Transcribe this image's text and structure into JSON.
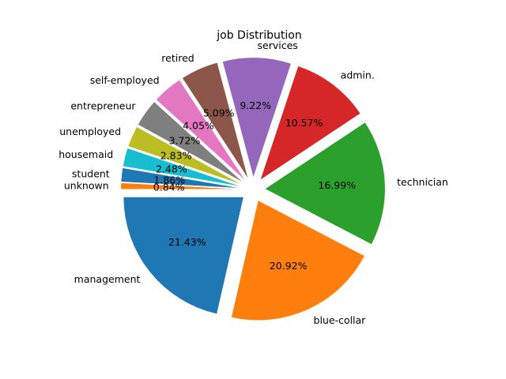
{
  "chart_data": {
    "type": "pie",
    "title": "job Distribution",
    "slices": [
      {
        "label": "management",
        "value": 21.43,
        "pct_label": "21.43%",
        "color": "#1f77b4"
      },
      {
        "label": "blue-collar",
        "value": 20.92,
        "pct_label": "20.92%",
        "color": "#ff7f0e"
      },
      {
        "label": "technician",
        "value": 16.99,
        "pct_label": "16.99%",
        "color": "#2ca02c"
      },
      {
        "label": "admin.",
        "value": 10.57,
        "pct_label": "10.57%",
        "color": "#d62728"
      },
      {
        "label": "services",
        "value": 9.22,
        "pct_label": "9.22%",
        "color": "#9467bd"
      },
      {
        "label": "retired",
        "value": 5.09,
        "pct_label": "5.09%",
        "color": "#8c564b"
      },
      {
        "label": "self-employed",
        "value": 4.05,
        "pct_label": "4.05%",
        "color": "#e377c2"
      },
      {
        "label": "entrepreneur",
        "value": 3.72,
        "pct_label": "3.72%",
        "color": "#7f7f7f"
      },
      {
        "label": "unemployed",
        "value": 2.83,
        "pct_label": "2.83%",
        "color": "#bcbd22"
      },
      {
        "label": "housemaid",
        "value": 2.48,
        "pct_label": "2.48%",
        "color": "#17becf"
      },
      {
        "label": "student",
        "value": 1.86,
        "pct_label": "1.86%",
        "color": "#1f77b4"
      },
      {
        "label": "unknown",
        "value": 0.84,
        "pct_label": "0.84%",
        "color": "#ff7f0e"
      }
    ],
    "start_angle_deg": 180,
    "direction": "counterclockwise",
    "explode": 0.1
  }
}
